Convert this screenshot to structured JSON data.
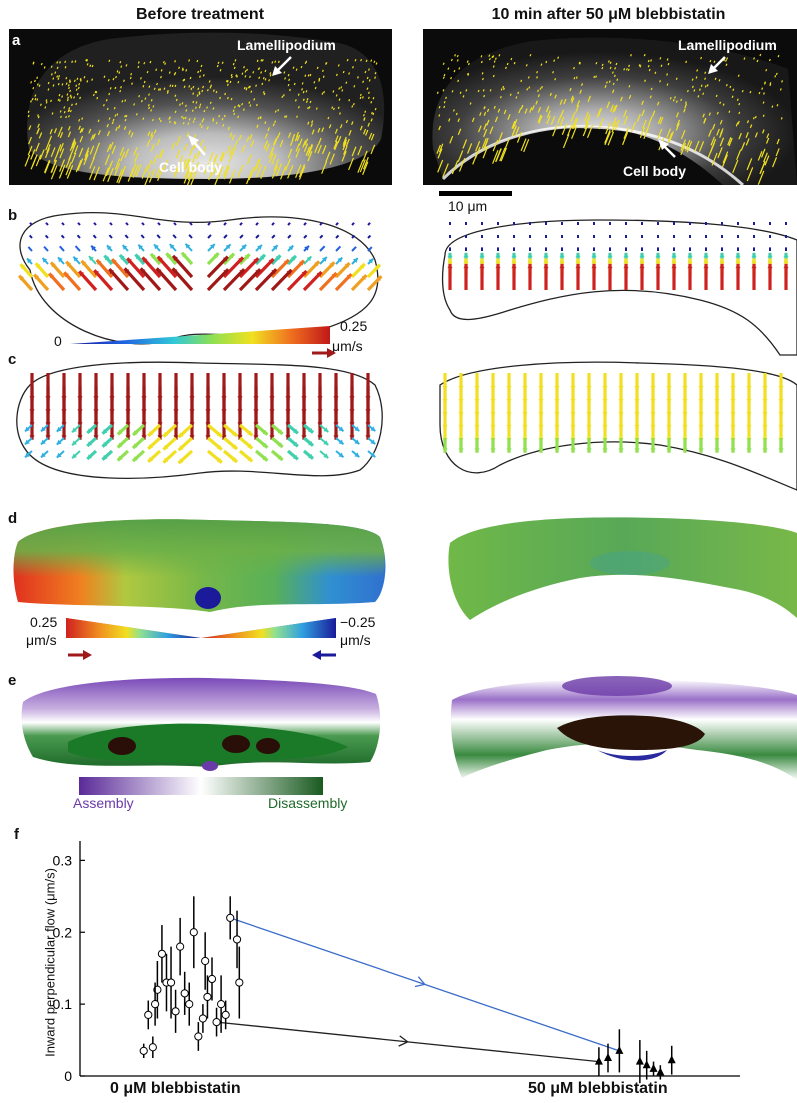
{
  "headers": {
    "left": "Before treatment",
    "right": "10 min after 50 μM blebbistatin"
  },
  "panel_letters": {
    "a": "a",
    "b": "b",
    "c": "c",
    "d": "d",
    "e": "e",
    "f": "f"
  },
  "panel_a": {
    "left_top_label": "Lamellipodium",
    "left_bottom_label": "Cell body",
    "right_top_label": "Lamellipodium",
    "right_bottom_label": "Cell body",
    "scale_bar": "10 μm"
  },
  "colorbar_speed": {
    "min": "0",
    "max": "0.25",
    "unit": "μm/s"
  },
  "colorbar_flow": {
    "left_value": "0.25",
    "left_unit": "μm/s",
    "right_value": "−0.25",
    "right_unit": "μm/s"
  },
  "colorbar_assembly": {
    "left": "Assembly",
    "right": "Disassembly"
  },
  "colors": {
    "arrow_yellow": "#f0e020",
    "assembly": "#6a3aa8",
    "disassembly": "#1e6a2a",
    "line_blue": "#3a6cc8"
  },
  "chart_data": {
    "type": "scatter",
    "ylabel": "Inward perpendicular flow (μm/s)",
    "ylim": [
      0,
      0.32
    ],
    "yticks": [
      "0",
      "0.1",
      "0.2",
      "0.3"
    ],
    "categories": [
      "0 μM blebbistatin",
      "50 μM blebbistatin"
    ],
    "series": [
      {
        "marker": "circle",
        "points": [
          {
            "x": 0.78,
            "y": 0.035,
            "err": 0.01
          },
          {
            "x": 0.82,
            "y": 0.04,
            "err": 0.015
          },
          {
            "x": 0.8,
            "y": 0.085,
            "err": 0.02
          },
          {
            "x": 0.84,
            "y": 0.12,
            "err": 0.04
          },
          {
            "x": 0.86,
            "y": 0.17,
            "err": 0.04
          },
          {
            "x": 0.83,
            "y": 0.1,
            "err": 0.03
          },
          {
            "x": 0.88,
            "y": 0.13,
            "err": 0.04
          },
          {
            "x": 0.9,
            "y": 0.13,
            "err": 0.05
          },
          {
            "x": 0.92,
            "y": 0.09,
            "err": 0.03
          },
          {
            "x": 0.96,
            "y": 0.115,
            "err": 0.03
          },
          {
            "x": 0.98,
            "y": 0.1,
            "err": 0.03
          },
          {
            "x": 1.0,
            "y": 0.2,
            "err": 0.05
          },
          {
            "x": 1.02,
            "y": 0.055,
            "err": 0.02
          },
          {
            "x": 1.04,
            "y": 0.08,
            "err": 0.02
          },
          {
            "x": 1.05,
            "y": 0.16,
            "err": 0.04
          },
          {
            "x": 1.06,
            "y": 0.11,
            "err": 0.03
          },
          {
            "x": 1.1,
            "y": 0.075,
            "err": 0.02
          },
          {
            "x": 1.12,
            "y": 0.1,
            "err": 0.04
          },
          {
            "x": 1.14,
            "y": 0.085,
            "err": 0.02
          },
          {
            "x": 1.16,
            "y": 0.22,
            "err": 0.03
          },
          {
            "x": 1.19,
            "y": 0.19,
            "err": 0.04
          },
          {
            "x": 1.2,
            "y": 0.13,
            "err": 0.05
          },
          {
            "x": 1.08,
            "y": 0.135,
            "err": 0.03
          },
          {
            "x": 0.94,
            "y": 0.18,
            "err": 0.04
          }
        ]
      },
      {
        "marker": "triangle",
        "points": [
          {
            "x": 2.78,
            "y": 0.02,
            "err": 0.02
          },
          {
            "x": 2.82,
            "y": 0.025,
            "err": 0.02
          },
          {
            "x": 2.87,
            "y": 0.035,
            "err": 0.03
          },
          {
            "x": 2.96,
            "y": 0.02,
            "err": 0.03
          },
          {
            "x": 2.99,
            "y": 0.015,
            "err": 0.02
          },
          {
            "x": 3.02,
            "y": 0.01,
            "err": 0.01
          },
          {
            "x": 3.05,
            "y": 0.005,
            "err": 0.01
          },
          {
            "x": 3.1,
            "y": 0.022,
            "err": 0.02
          }
        ]
      }
    ],
    "connections": [
      {
        "from": [
          1.16,
          0.22
        ],
        "to": [
          2.87,
          0.035
        ],
        "color": "#3a6cc8"
      },
      {
        "from": [
          1.1,
          0.075
        ],
        "to": [
          2.78,
          0.02
        ],
        "color": "#222222"
      }
    ],
    "xlim": [
      0.5,
      3.4
    ]
  }
}
